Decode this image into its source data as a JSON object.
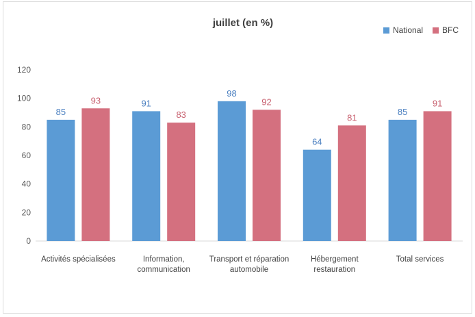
{
  "chart_data": {
    "type": "bar",
    "title": "juillet (en %)",
    "categories": [
      [
        "Activités spécialisées"
      ],
      [
        "Information,",
        "communication"
      ],
      [
        "Transport et réparation",
        "automobile"
      ],
      [
        "Hébergement",
        "restauration"
      ],
      [
        "Total services"
      ]
    ],
    "series": [
      {
        "name": "National",
        "color": "#5b9bd5",
        "label_color": "#4a7fc0",
        "values": [
          85,
          91,
          98,
          64,
          85
        ]
      },
      {
        "name": "BFC",
        "color": "#d4707f",
        "label_color": "#c8606f",
        "values": [
          93,
          83,
          92,
          81,
          91
        ]
      }
    ],
    "ylim": [
      0,
      120
    ],
    "yticks": [
      0,
      20,
      40,
      60,
      80,
      100,
      120
    ],
    "legend_position": "top-right",
    "grid": false
  }
}
